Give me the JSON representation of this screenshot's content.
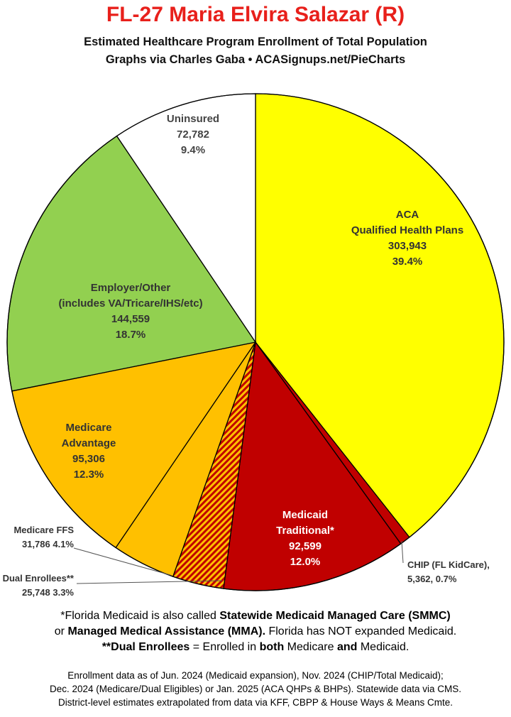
{
  "header": {
    "title": "FL-27 Maria Elvira Salazar (R)",
    "subtitle": "Estimated Healthcare Program Enrollment of Total Population",
    "credit": "Graphs via Charles Gaba   •   ACASignups.net/PieCharts"
  },
  "chart_data": {
    "type": "pie",
    "title": "Estimated Healthcare Program Enrollment of Total Population",
    "start_angle_deg": 0,
    "direction": "clockwise",
    "slices": [
      {
        "key": "aca",
        "label_lines": [
          "ACA",
          "Qualified Health Plans"
        ],
        "value": 303943,
        "value_text": "303,943",
        "percent_text": "39.4%",
        "color": "#ffff00",
        "text_color": "#333333"
      },
      {
        "key": "chip",
        "label_lines": [
          "CHIP (FL KidCare),"
        ],
        "value": 5362,
        "value_text": "5,362, 0.7%",
        "percent_text": "",
        "color": "#c00000",
        "text_color": "#333333"
      },
      {
        "key": "medicaid",
        "label_lines": [
          "Medicaid",
          "Traditional*"
        ],
        "value": 92599,
        "value_text": "92,599",
        "percent_text": "12.0%",
        "color": "#c00000",
        "text_color": "#ffffff"
      },
      {
        "key": "dual",
        "label_lines": [
          "Dual Enrollees**"
        ],
        "value": 25748,
        "value_text": "25,748 3.3%",
        "percent_text": "",
        "color": "#ffc000",
        "hatch": "#c00000",
        "text_color": "#333333"
      },
      {
        "key": "ffs",
        "label_lines": [
          "Medicare FFS"
        ],
        "value": 31786,
        "value_text": "31,786 4.1%",
        "percent_text": "",
        "color": "#ffc000",
        "text_color": "#333333"
      },
      {
        "key": "ma",
        "label_lines": [
          "Medicare",
          "Advantage"
        ],
        "value": 95306,
        "value_text": "95,306",
        "percent_text": "12.3%",
        "color": "#ffc000",
        "text_color": "#333333"
      },
      {
        "key": "employer",
        "label_lines": [
          "Employer/Other",
          "(includes VA/Tricare/IHS/etc)"
        ],
        "value": 144559,
        "value_text": "144,559",
        "percent_text": "18.7%",
        "color": "#92d050",
        "text_color": "#333333"
      },
      {
        "key": "uninsured",
        "label_lines": [
          "Uninsured"
        ],
        "value": 72782,
        "value_text": "72,782",
        "percent_text": "9.4%",
        "color": "#ffffff",
        "text_color": "#444444"
      }
    ]
  },
  "footnotes": {
    "line1_pre": "*Florida Medicaid is also called ",
    "line1_bold": "Statewide Medicaid Managed Care (SMMC)",
    "line2_pre": "or ",
    "line2_bold": "Managed Medical Assistance (MMA).",
    "line2_post": " Florida has NOT expanded Medicaid.",
    "line3_bold1": "**Dual Enrollees",
    "line3_mid": " = Enrolled in ",
    "line3_bold2": "both",
    "line3_mid2": " Medicare ",
    "line3_bold3": "and",
    "line3_post": " Medicaid."
  },
  "source": {
    "line1": "Enrollment data as of Jun. 2024 (Medicaid expansion), Nov. 2024 (CHIP/Total Medicaid);",
    "line2": "Dec. 2024 (Medicare/Dual Eligibles) or Jan. 2025 (ACA QHPs & BHPs). Statewide data via CMS.",
    "line3": "District-level estimates extrapolated from data via KFF, CBPP & House Ways & Means Cmte."
  }
}
